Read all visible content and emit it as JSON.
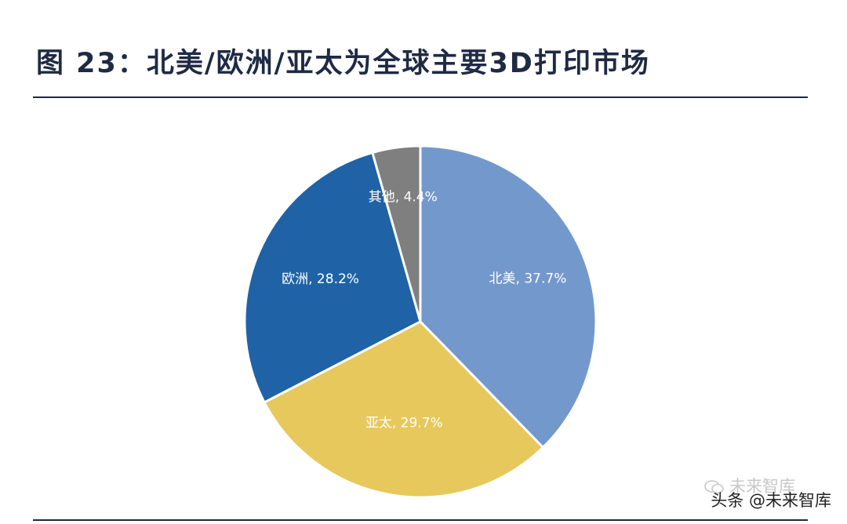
{
  "title": "图 23：北美/欧洲/亚太为全球主要3D打印市场",
  "chart_data": {
    "type": "pie",
    "slices": [
      {
        "name": "北美",
        "value": 37.7,
        "label": "北美, 37.7%",
        "color": "#7399cc"
      },
      {
        "name": "亚太",
        "value": 29.7,
        "label": "亚太, 29.7%",
        "color": "#e6c85c"
      },
      {
        "name": "欧洲",
        "value": 28.2,
        "label": "欧洲, 28.2%",
        "color": "#1f63a6"
      },
      {
        "name": "其他",
        "value": 4.4,
        "label": "其他, 4.4%",
        "color": "#7f7f7f"
      }
    ],
    "start_angle": "12 o'clock",
    "direction": "clockwise"
  },
  "watermark": {
    "text": "头条 @未来智库",
    "ghost_text": "未来智库",
    "icon": "wechat-icon"
  }
}
